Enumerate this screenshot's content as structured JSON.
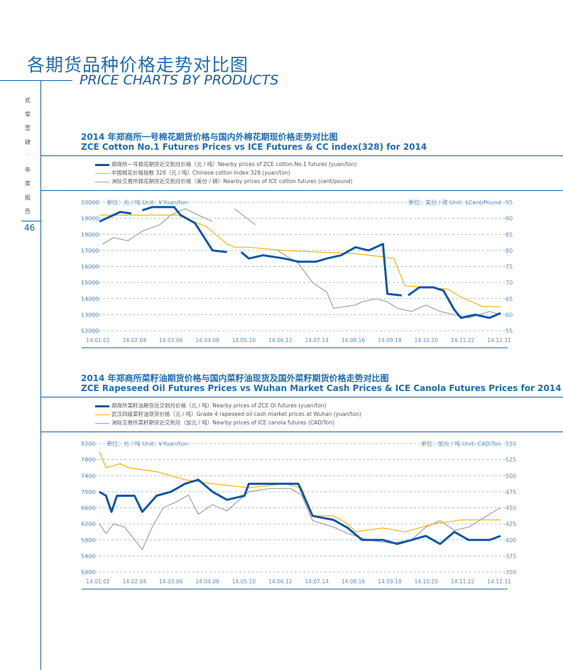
{
  "header": {
    "title_cn": "各期货品种价格走势对比图",
    "title_en": "PRICE CHARTS BY PRODUCTS"
  },
  "side": {
    "vertical_text": [
      "贰",
      "零",
      "壹",
      "肆",
      "·",
      "年",
      "度",
      "报",
      "告"
    ],
    "page_number": "46"
  },
  "colors": {
    "zce": "#0e57a6",
    "cash": "#f2b705",
    "ice": "#a0a0a0",
    "grid": "#8fb0d0"
  },
  "chart_data": [
    {
      "type": "line",
      "title_cn": "2014 年郑商所一号棉花期货价格与国内外棉花期现价格走势对比图",
      "title_en": "ZCE Cotton No.1 Futures Prices vs ICE Futures & CC index(328) for 2014",
      "left_unit": "单位：元 / 吨  Unit: ￥Yuan/ton",
      "right_unit": "单位：美分 / 磅  Unit: $Cent/Pound",
      "ylim": [
        12000,
        20000
      ],
      "yticks": [
        "20000",
        "19000",
        "18000",
        "17000",
        "16000",
        "15000",
        "14000",
        "13000",
        "12000"
      ],
      "y2lim": [
        55,
        95
      ],
      "y2ticks": [
        "95",
        "90",
        "85",
        "80",
        "75",
        "70",
        "65",
        "60",
        "55"
      ],
      "xticks": [
        "14.01.02",
        "14.02.04",
        "14.03.06",
        "14.04.08",
        "14.05.10",
        "14.06.12",
        "14.07.14",
        "14.08.16",
        "14.09.18",
        "14.10.20",
        "14.11.22",
        "14.12.31"
      ],
      "x_unit": "day of year",
      "series": [
        {
          "name": "郑商所一号棉花期货近交割月价格（元 / 吨）Nearby prices of ZCE cotton No.1 futures (yuan/ton)",
          "axis": "left",
          "color": "zce",
          "points": [
            [
              0,
              18800
            ],
            [
              19,
              19400
            ],
            [
              29,
              19300
            ],
            null,
            [
              39,
              19500
            ],
            [
              48,
              19700
            ],
            [
              68,
              19700
            ],
            [
              74,
              19200
            ],
            [
              87,
              18700
            ],
            [
              103,
              17000
            ],
            [
              116,
              16900
            ],
            null,
            [
              129,
              16900
            ],
            [
              136,
              16500
            ],
            [
              149,
              16700
            ],
            [
              168,
              16500
            ],
            [
              181,
              16300
            ],
            [
              197,
              16300
            ],
            [
              207,
              16500
            ],
            [
              220,
              16700
            ],
            [
              233,
              17200
            ],
            [
              245,
              17000
            ],
            [
              258,
              17400
            ],
            [
              262,
              14300
            ],
            [
              275,
              14200
            ],
            null,
            [
              281,
              14200
            ],
            [
              291,
              14700
            ],
            [
              304,
              14700
            ],
            [
              313,
              14500
            ],
            [
              323,
              13300
            ],
            [
              329,
              12800
            ],
            [
              342,
              13000
            ],
            [
              355,
              12800
            ],
            [
              365,
              13100
            ]
          ]
        },
        {
          "name": "中国棉花价格指数 328（元 / 吨）Chinese cotton Index 328 (yuan/ton)",
          "axis": "left",
          "color": "cash",
          "points": [
            [
              0,
              19200
            ],
            [
              71,
              19200
            ],
            [
              97,
              18500
            ],
            [
              116,
              17400
            ],
            [
              123,
              17200
            ],
            [
              136,
              17200
            ],
            [
              168,
              17000
            ],
            [
              200,
              16900
            ],
            [
              233,
              16800
            ],
            [
              258,
              16600
            ],
            [
              268,
              16500
            ],
            [
              278,
              14800
            ],
            [
              297,
              14700
            ],
            [
              317,
              14600
            ],
            [
              329,
              14100
            ],
            [
              349,
              13500
            ],
            [
              365,
              13500
            ]
          ]
        },
        {
          "name": "洲际交易所棉花期货近交割月价格（美分 / 磅）Nearby prices of ICE cotton futures (cent/pound)",
          "axis": "right",
          "color": "ice",
          "points": [
            [
              3,
              82
            ],
            [
              13,
              84
            ],
            [
              26,
              83
            ],
            [
              39,
              86
            ],
            [
              55,
              88
            ],
            [
              65,
              91
            ],
            [
              78,
              93
            ],
            [
              90,
              91
            ],
            [
              103,
              89
            ],
            null,
            [
              123,
              93
            ],
            [
              142,
              88
            ],
            null,
            [
              162,
              80
            ],
            [
              181,
              76
            ],
            [
              194,
              70
            ],
            [
              207,
              67
            ],
            [
              213,
              62
            ],
            [
              233,
              63
            ],
            [
              239,
              64
            ],
            [
              252,
              65
            ],
            [
              262,
              64
            ],
            [
              271,
              62
            ],
            [
              284,
              61
            ],
            [
              297,
              63
            ],
            [
              310,
              61
            ],
            [
              323,
              60
            ],
            [
              336,
              59
            ],
            [
              355,
              61
            ],
            [
              365,
              60
            ]
          ]
        }
      ]
    },
    {
      "type": "line",
      "title_cn": "2014 年郑商所菜籽油期货价格与国内菜籽油现货及国外菜籽期货价格走势对比图",
      "title_en": "ZCE Rapeseed Oil Futures Prices vs Wuhan Market Cash Prices & ICE Canola Futures Prices for 2014",
      "left_unit": "单位：元 / 吨  Unit: ￥Yuan/ton",
      "right_unit": "单位：加元 / 吨  Unit: CAD/Ton",
      "ylim": [
        5000,
        8200
      ],
      "yticks": [
        "8200",
        "7800",
        "7400",
        "7000",
        "6600",
        "6200",
        "5800",
        "5400",
        "5000"
      ],
      "y2lim": [
        350,
        550
      ],
      "y2ticks": [
        "550",
        "525",
        "500",
        "475",
        "450",
        "425",
        "400",
        "375",
        "350"
      ],
      "xticks": [
        "14.01.02",
        "14.02.04",
        "14.03.06",
        "14.04.08",
        "14.05.10",
        "14.06.12",
        "14.07.14",
        "14.08.16",
        "14.09.18",
        "14.10.20",
        "14.11.22",
        "14.12.31"
      ],
      "x_unit": "day of year",
      "series": [
        {
          "name": "郑商所菜籽油期货近交割月价格（元 / 吨）Nearby prices of ZCE OI futures (yuan/ton)",
          "axis": "left",
          "color": "zce",
          "points": [
            [
              0,
              7000
            ],
            [
              6,
              6900
            ],
            [
              11,
              6500
            ],
            [
              16,
              6900
            ],
            [
              32,
              6900
            ],
            [
              39,
              6500
            ],
            [
              52,
              6900
            ],
            [
              65,
              7000
            ],
            [
              78,
              7200
            ],
            [
              90,
              7300
            ],
            [
              103,
              7000
            ],
            [
              116,
              6800
            ],
            [
              132,
              6900
            ],
            [
              136,
              7200
            ],
            [
              181,
              7200
            ],
            [
              194,
              6400
            ],
            [
              213,
              6300
            ],
            [
              226,
              6100
            ],
            [
              239,
              5800
            ],
            [
              258,
              5800
            ],
            [
              271,
              5700
            ],
            [
              284,
              5800
            ],
            [
              297,
              5900
            ],
            [
              310,
              5700
            ],
            [
              323,
              6000
            ],
            [
              336,
              5800
            ],
            [
              355,
              5800
            ],
            [
              365,
              5900
            ]
          ]
        },
        {
          "name": "武汉四级菜籽油现货价格（元 / 吨）Grade 4 rapeseed oil cash market prices at Wuhan (yuan/ton)",
          "axis": "left",
          "color": "cash",
          "points": [
            [
              0,
              8000
            ],
            [
              6,
              7600
            ],
            [
              19,
              7700
            ],
            [
              26,
              7600
            ],
            [
              52,
              7500
            ],
            [
              78,
              7300
            ],
            [
              103,
              7200
            ],
            [
              136,
              7100
            ],
            [
              168,
              7200
            ],
            [
              184,
              7100
            ],
            [
              194,
              6400
            ],
            [
              213,
              6400
            ],
            [
              226,
              6200
            ],
            [
              233,
              6000
            ],
            [
              258,
              6100
            ],
            [
              278,
              6000
            ],
            [
              304,
              6200
            ],
            [
              329,
              6300
            ],
            [
              365,
              6300
            ]
          ]
        },
        {
          "name": "洲际交易所菜籽期货近交割月（加元 / 吨）Nearby prices of ICE canola futures (CAD/Ton)",
          "axis": "right",
          "color": "ice",
          "points": [
            [
              0,
              425
            ],
            [
              6,
              410
            ],
            [
              13,
              425
            ],
            [
              23,
              420
            ],
            [
              39,
              385
            ],
            [
              48,
              420
            ],
            [
              58,
              450
            ],
            [
              71,
              460
            ],
            [
              81,
              470
            ],
            [
              90,
              440
            ],
            [
              103,
              455
            ],
            [
              116,
              445
            ],
            [
              129,
              465
            ],
            [
              136,
              475
            ],
            [
              155,
              480
            ],
            [
              174,
              480
            ],
            [
              184,
              470
            ],
            [
              194,
              430
            ],
            [
              213,
              420
            ],
            [
              226,
              410
            ],
            [
              245,
              400
            ],
            [
              265,
              395
            ],
            [
              284,
              400
            ],
            [
              297,
              420
            ],
            [
              310,
              430
            ],
            [
              323,
              415
            ],
            [
              336,
              420
            ],
            [
              355,
              440
            ],
            [
              365,
              450
            ]
          ]
        }
      ]
    }
  ]
}
